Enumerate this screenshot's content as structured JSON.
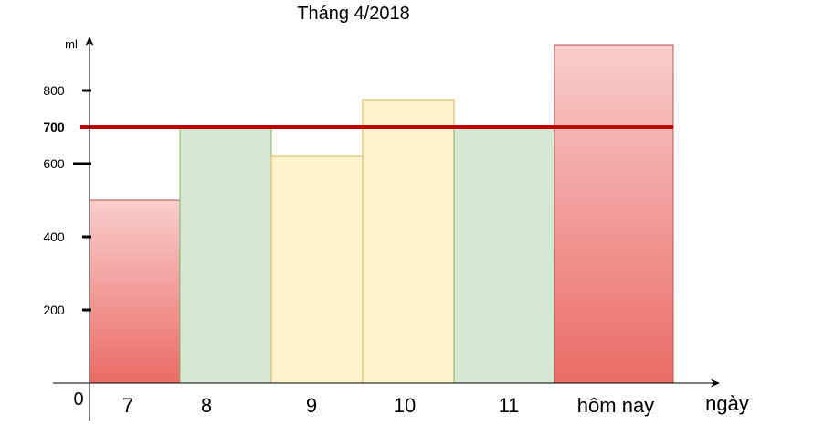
{
  "chart_data": {
    "type": "bar",
    "title": "Tháng 4/2018",
    "ylabel": "ml",
    "xlabel": "ngày",
    "origin_label": "0",
    "categories": [
      "7",
      "8",
      "9",
      "10",
      "11",
      "hôm nay"
    ],
    "values": [
      500,
      700,
      620,
      775,
      700,
      925
    ],
    "bar_colors": [
      "red-gradient",
      "green",
      "yellow",
      "yellow",
      "green",
      "red-gradient"
    ],
    "y_ticks": [
      200,
      400,
      600,
      700,
      800
    ],
    "threshold": {
      "value": 700,
      "label": "700",
      "color": "#c00000"
    },
    "ylim": [
      0,
      925
    ],
    "grid": false,
    "colors": {
      "green": "#d5e8d4",
      "green_border": "#82b366",
      "yellow": "#fff2cc",
      "yellow_border": "#d6b656",
      "red_top": "#f8cecc",
      "red_bottom": "#ea6b66",
      "red_border": "#b85450"
    }
  }
}
